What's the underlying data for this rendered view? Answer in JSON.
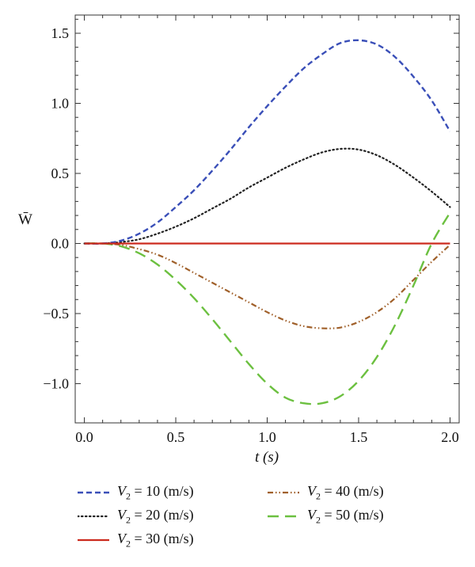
{
  "chart_data": {
    "type": "line",
    "title": "",
    "xlabel": "t (s)",
    "ylabel": "W̄",
    "xlim": [
      -0.05,
      2.05
    ],
    "ylim": [
      -1.28,
      1.63
    ],
    "xticks": [
      0.0,
      0.5,
      1.0,
      1.5,
      2.0
    ],
    "xtick_labels": [
      "0.0",
      "0.5",
      "1.0",
      "1.5",
      "2.0"
    ],
    "yticks": [
      -1.0,
      -0.5,
      0.0,
      0.5,
      1.0,
      1.5
    ],
    "ytick_labels": [
      "−1.0",
      "−0.5",
      "0.0",
      "0.5",
      "1.0",
      "1.5"
    ],
    "grid": false,
    "legend_position": "bottom",
    "x": [
      0.0,
      0.1,
      0.2,
      0.3,
      0.4,
      0.5,
      0.6,
      0.7,
      0.8,
      0.9,
      1.0,
      1.1,
      1.2,
      1.3,
      1.4,
      1.5,
      1.6,
      1.7,
      1.8,
      1.9,
      2.0
    ],
    "series": [
      {
        "name": "V2 = 10 (m/s)",
        "color": "#3a4fb8",
        "style": "dashed",
        "values": [
          0.0,
          0.0,
          0.02,
          0.07,
          0.15,
          0.26,
          0.38,
          0.52,
          0.67,
          0.83,
          0.98,
          1.12,
          1.25,
          1.35,
          1.43,
          1.45,
          1.42,
          1.33,
          1.19,
          1.02,
          0.8
        ]
      },
      {
        "name": "V2 = 20 (m/s)",
        "color": "#222222",
        "style": "dotted",
        "values": [
          0.0,
          0.0,
          0.01,
          0.03,
          0.07,
          0.12,
          0.18,
          0.25,
          0.32,
          0.4,
          0.47,
          0.54,
          0.6,
          0.65,
          0.675,
          0.67,
          0.63,
          0.56,
          0.47,
          0.37,
          0.26
        ]
      },
      {
        "name": "V2 = 30 (m/s)",
        "color": "#cc2a1e",
        "style": "solid",
        "values": [
          0.0,
          0.0,
          0.0,
          0.0,
          0.0,
          0.0,
          0.0,
          0.0,
          0.0,
          0.0,
          0.0,
          0.0,
          0.0,
          0.0,
          0.0,
          0.0,
          0.0,
          0.0,
          0.0,
          0.0,
          0.0
        ]
      },
      {
        "name": "V2 = 40 (m/s)",
        "color": "#a0602a",
        "style": "dashdotdot",
        "values": [
          0.0,
          0.0,
          -0.01,
          -0.04,
          -0.08,
          -0.14,
          -0.21,
          -0.28,
          -0.35,
          -0.42,
          -0.49,
          -0.55,
          -0.59,
          -0.605,
          -0.6,
          -0.56,
          -0.49,
          -0.39,
          -0.26,
          -0.13,
          -0.01
        ]
      },
      {
        "name": "V2 = 50 (m/s)",
        "color": "#6cc040",
        "style": "longdash",
        "values": [
          0.0,
          0.0,
          -0.02,
          -0.07,
          -0.15,
          -0.26,
          -0.39,
          -0.54,
          -0.7,
          -0.86,
          -1.0,
          -1.1,
          -1.14,
          -1.14,
          -1.09,
          -0.98,
          -0.81,
          -0.58,
          -0.3,
          0.0,
          0.22
        ]
      }
    ]
  }
}
